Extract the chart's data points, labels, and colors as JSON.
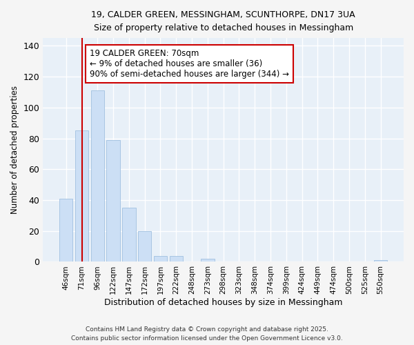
{
  "title_line1": "19, CALDER GREEN, MESSINGHAM, SCUNTHORPE, DN17 3UA",
  "title_line2": "Size of property relative to detached houses in Messingham",
  "xlabel": "Distribution of detached houses by size in Messingham",
  "ylabel": "Number of detached properties",
  "bar_color": "#ccdff5",
  "bar_edge_color": "#a0c0e0",
  "categories": [
    "46sqm",
    "71sqm",
    "96sqm",
    "122sqm",
    "147sqm",
    "172sqm",
    "197sqm",
    "222sqm",
    "248sqm",
    "273sqm",
    "298sqm",
    "323sqm",
    "348sqm",
    "374sqm",
    "399sqm",
    "424sqm",
    "449sqm",
    "474sqm",
    "500sqm",
    "525sqm",
    "550sqm"
  ],
  "values": [
    41,
    85,
    111,
    79,
    35,
    20,
    4,
    4,
    0,
    2,
    0,
    0,
    0,
    0,
    0,
    0,
    0,
    0,
    0,
    0,
    1
  ],
  "ylim": [
    0,
    145
  ],
  "yticks": [
    0,
    20,
    40,
    60,
    80,
    100,
    120,
    140
  ],
  "annotation_title": "19 CALDER GREEN: 70sqm",
  "annotation_line1": "← 9% of detached houses are smaller (36)",
  "annotation_line2": "90% of semi-detached houses are larger (344) →",
  "annotation_box_color": "#ffffff",
  "annotation_box_edge_color": "#cc0000",
  "red_line_x": 1,
  "footer_line1": "Contains HM Land Registry data © Crown copyright and database right 2025.",
  "footer_line2": "Contains public sector information licensed under the Open Government Licence v3.0.",
  "background_color": "#f5f5f5",
  "plot_bg_color": "#e8f0f8"
}
